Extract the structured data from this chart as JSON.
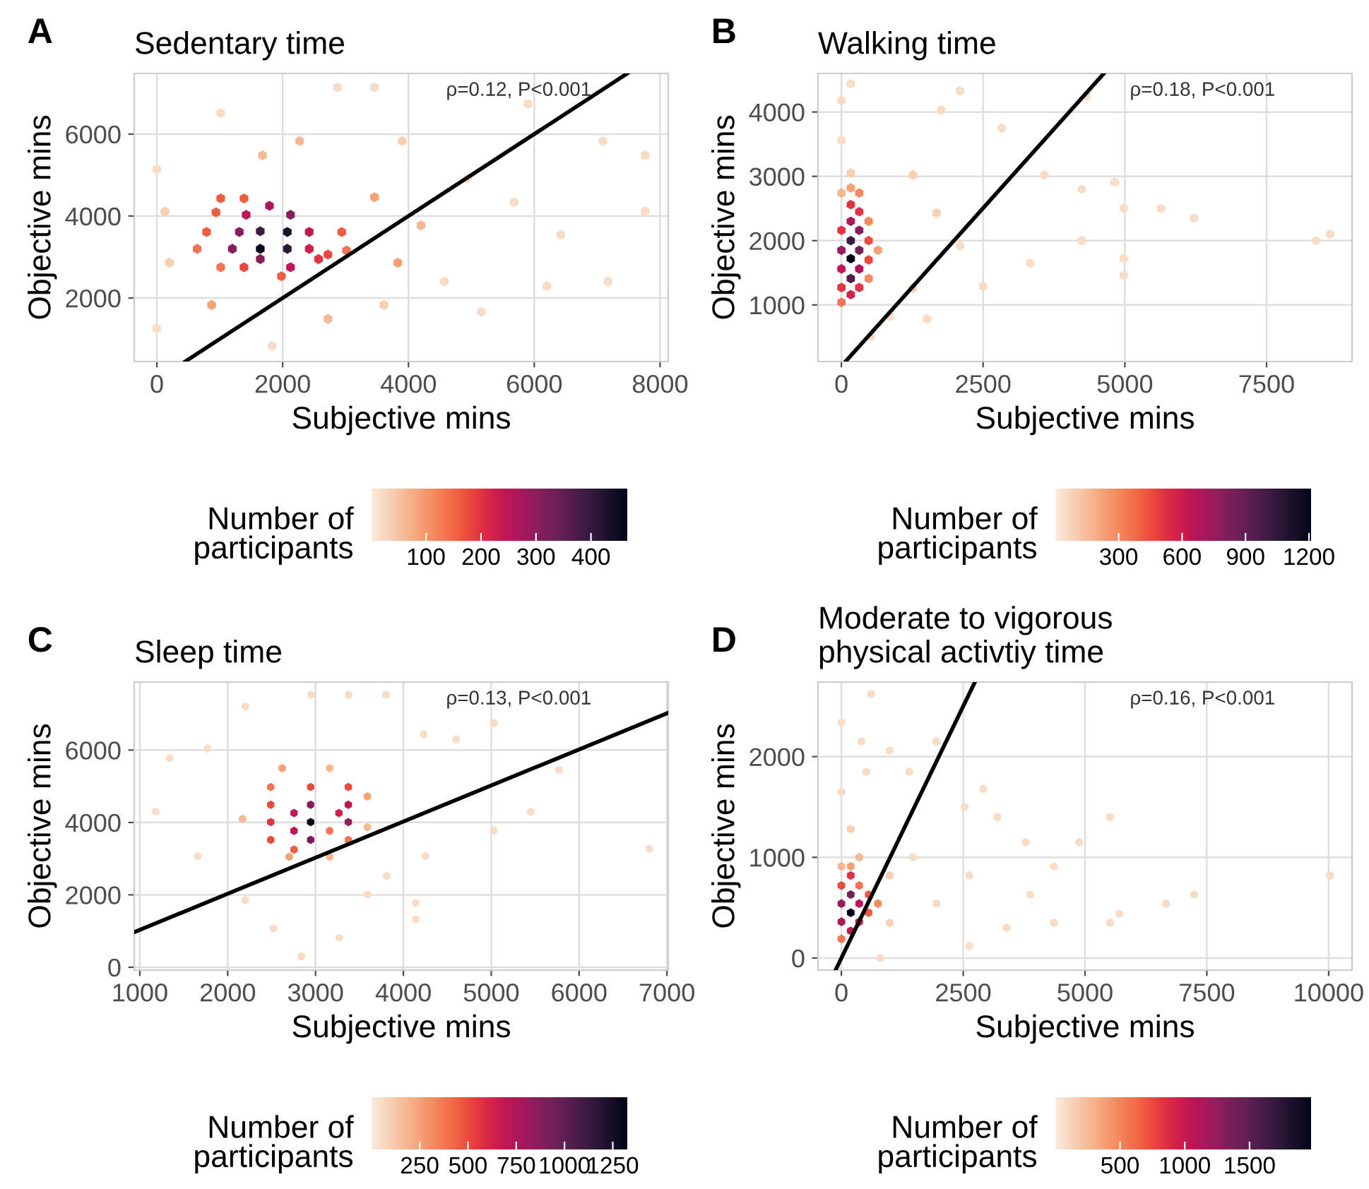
{
  "chart_data": [
    {
      "type": "scatter",
      "title": "Sedentary time",
      "xlabel": "Subjective mins",
      "ylabel": "Objective mins",
      "clabel": "Number of participants",
      "annotations": [
        "A",
        "ρ=0.12, P<0.001"
      ],
      "xlim": [
        -360,
        8130
      ],
      "ylim": [
        450,
        7480
      ],
      "xticks": [
        0,
        2000,
        4000,
        6000,
        8000
      ],
      "yticks": [
        2000,
        4000,
        6000
      ],
      "grid": true,
      "clim": [
        1,
        466
      ],
      "cticks": [
        100,
        200,
        300,
        400
      ],
      "series": [
        {
          "type": "scatter",
          "x": [
            1644,
            2074,
            2074,
            1644,
            1311,
            1200,
            1644,
            2125,
            1790,
            1420,
            2422,
            2422,
            2125,
            2570,
            790,
            940,
            1015,
            1385,
            2940,
            2720,
            1980,
            1385,
            1015,
            640,
            3015,
            0,
            0,
            1015,
            2870,
            3460,
            5900,
            7090,
            7760,
            7760,
            7170,
            6200,
            5160,
            1830,
            3900,
            4940,
            5680,
            4570,
            3610,
            200,
            130,
            4200,
            3460,
            3830,
            6420,
            2270,
            1680,
            2720,
            870
          ],
          "values": [
            3200,
            3610,
            3200,
            3630,
            3610,
            3200,
            2950,
            4030,
            4250,
            4030,
            3610,
            3200,
            2750,
            2950,
            3610,
            4090,
            4430,
            4430,
            3610,
            3060,
            2530,
            2750,
            2750,
            3200,
            3160,
            5140,
            1260,
            6510,
            7140,
            7140,
            6740,
            5830,
            5480,
            4110,
            2400,
            2290,
            1660,
            830,
            5830,
            4910,
            4340,
            2400,
            1830,
            2860,
            4110,
            3770,
            4460,
            2860,
            3540,
            5830,
            5480,
            1490,
            1830
          ],
          "colors": [
            "#03051a",
            "#1d112c",
            "#2d1738",
            "#3e1a43",
            "#861e5b",
            "#861e5b",
            "#861e5b",
            "#861e5b",
            "#ad1759",
            "#bf1756",
            "#bf1756",
            "#d1224d",
            "#bf1756",
            "#df3443",
            "#f05c40",
            "#f05c40",
            "#f05c40",
            "#f05c40",
            "#f05c40",
            "#ea4a3c",
            "#f05c40",
            "#ea4a3c",
            "#f47553",
            "#f47553",
            "#f47553",
            "#f9dcc6",
            "#f9dcc6",
            "#f9dcc6",
            "#f9dcc6",
            "#f9dcc6",
            "#f9dcc6",
            "#f9dcc6",
            "#f9dcc6",
            "#f9dcc6",
            "#f9dcc6",
            "#f9dcc6",
            "#f9dcc6",
            "#f9dcc6",
            "#f8cfb3",
            "#f9dcc6",
            "#f9dcc6",
            "#f9dcc6",
            "#f8cfb3",
            "#f8cfb3",
            "#f8cfb3",
            "#f6b892",
            "#f5a273",
            "#f5a273",
            "#f9dcc6",
            "#f6b892",
            "#f6b892",
            "#f6b892",
            "#f5a273"
          ]
        },
        {
          "type": "line",
          "x": [
            450,
            7480
          ],
          "values": [
            450,
            7480
          ],
          "color": "#000000"
        }
      ]
    },
    {
      "type": "scatter",
      "title": "Walking time",
      "xlabel": "Subjective mins",
      "ylabel": "Objective mins",
      "clabel": "Number of participants",
      "annotations": [
        "B",
        "ρ=0.18, P<0.001"
      ],
      "xlim": [
        -413,
        9008
      ],
      "ylim": [
        120,
        4600
      ],
      "xticks": [
        0,
        2500,
        5000,
        7500
      ],
      "yticks": [
        1000,
        2000,
        3000,
        4000
      ],
      "grid": true,
      "clim": [
        1,
        1210
      ],
      "cticks": [
        300,
        600,
        900,
        1200
      ],
      "series": [
        {
          "type": "scatter",
          "x": [
            165,
            165,
            165,
            314,
            0,
            314,
            165,
            0,
            314,
            0,
            165,
            0,
            314,
            480,
            480,
            314,
            165,
            0,
            480,
            645,
            480,
            165,
            314,
            0,
            165,
            0,
            165,
            0,
            2090,
            1760,
            2830,
            1260,
            1680,
            2090,
            1260,
            850,
            1510,
            520,
            3580,
            4240,
            4820,
            4980,
            5640,
            6220,
            4240,
            4980,
            4980,
            8370,
            8620,
            4320,
            3330,
            2500
          ],
          "values": [
            1720,
            2000,
            1410,
            1850,
            1850,
            2160,
            2300,
            1560,
            1560,
            2160,
            1160,
            1270,
            1270,
            1700,
            2000,
            2450,
            2560,
            1040,
            2300,
            1850,
            1410,
            2820,
            2740,
            2740,
            3050,
            3560,
            4440,
            4180,
            4330,
            4030,
            3750,
            3020,
            2430,
            1920,
            1260,
            820,
            780,
            510,
            3020,
            2800,
            2910,
            2500,
            2500,
            2350,
            2000,
            1720,
            1460,
            2000,
            2100,
            4250,
            1650,
            1290
          ],
          "colors": [
            "#03051a",
            "#3e1a43",
            "#4f1d4b",
            "#731f58",
            "#9b1a5b",
            "#861e5b",
            "#ad1759",
            "#bf1756",
            "#ad1759",
            "#df3443",
            "#d1224d",
            "#df3443",
            "#df3443",
            "#ea4a3c",
            "#ea4a3c",
            "#df3443",
            "#df3443",
            "#f47553",
            "#f48a5f",
            "#f5a273",
            "#f48a5f",
            "#f5a273",
            "#f48a5f",
            "#f6b892",
            "#f8cfb3",
            "#f9dcc6",
            "#f9dcc6",
            "#f9dcc6",
            "#f9dcc6",
            "#f9dcc6",
            "#f9dcc6",
            "#f8cfb3",
            "#f8cfb3",
            "#f9dcc6",
            "#f8cfb3",
            "#f9dcc6",
            "#f9dcc6",
            "#f9dcc6",
            "#f9dcc6",
            "#f9dcc6",
            "#f9dcc6",
            "#f9dcc6",
            "#f9dcc6",
            "#f9dcc6",
            "#f9dcc6",
            "#f9dcc6",
            "#f9dcc6",
            "#f9dcc6",
            "#f9dcc6",
            "#f9dcc6",
            "#f9dcc6",
            "#f9dcc6"
          ]
        },
        {
          "type": "line",
          "x": [
            83,
            4630
          ],
          "values": [
            130,
            4600
          ],
          "color": "#000000"
        }
      ]
    },
    {
      "type": "scatter",
      "title": "Sleep time",
      "xlabel": "Subjective mins",
      "ylabel": "Objective mins",
      "clabel": "Number of participants",
      "annotations": [
        "C",
        "ρ=0.13, P<0.001"
      ],
      "xlim": [
        936,
        7015
      ],
      "ylim": [
        -80,
        7880
      ],
      "xticks": [
        1000,
        2000,
        3000,
        4000,
        5000,
        6000,
        7000
      ],
      "yticks": [
        0,
        2000,
        4000,
        6000
      ],
      "grid": true,
      "clim": [
        1,
        1325
      ],
      "cticks": [
        250,
        500,
        750,
        1000,
        1250
      ],
      "series": [
        {
          "type": "scatter",
          "x": [
            2944,
            2944,
            2944,
            3373,
            3373,
            2755,
            2755,
            3266,
            2490,
            2490,
            2490,
            2944,
            3373,
            2490,
            2755,
            3373,
            3160,
            2620,
            3160,
            3590,
            2170,
            2700,
            3160,
            3590,
            1180,
            1340,
            1770,
            2200,
            2950,
            3380,
            3800,
            4230,
            4600,
            5030,
            5450,
            5770,
            6800,
            5030,
            4140,
            4140,
            3270,
            2840,
            2520,
            2200,
            1660,
            4250,
            3810,
            3590
          ],
          "values": [
            4010,
            3520,
            4490,
            4010,
            4490,
            4260,
            3770,
            4260,
            4010,
            4490,
            3520,
            4980,
            4980,
            4980,
            3250,
            3520,
            3770,
            5500,
            5500,
            4720,
            4100,
            3050,
            3050,
            3870,
            4300,
            5780,
            6040,
            7200,
            7530,
            7530,
            7530,
            6430,
            6300,
            6750,
            4300,
            5450,
            3270,
            3780,
            1780,
            1330,
            810,
            300,
            1070,
            1850,
            3070,
            3070,
            2520,
            2010
          ],
          "colors": [
            "#03051a",
            "#731f58",
            "#861e5b",
            "#9b1a5b",
            "#bf1756",
            "#bf1756",
            "#bf1756",
            "#d1224d",
            "#df3443",
            "#ea4a3c",
            "#ea4a3c",
            "#ea4a3c",
            "#ea4a3c",
            "#f47553",
            "#f05c40",
            "#f47553",
            "#f47553",
            "#f5a273",
            "#f6b892",
            "#f5a273",
            "#f6b892",
            "#f5a273",
            "#f6b892",
            "#f6b892",
            "#f9dcc6",
            "#f9dcc6",
            "#f9dcc6",
            "#f9dcc6",
            "#f9dcc6",
            "#f9dcc6",
            "#f9dcc6",
            "#f9dcc6",
            "#f9dcc6",
            "#f9dcc6",
            "#f9dcc6",
            "#f9dcc6",
            "#f9dcc6",
            "#f9dcc6",
            "#f9dcc6",
            "#f9dcc6",
            "#f9dcc6",
            "#f9dcc6",
            "#f9dcc6",
            "#f9dcc6",
            "#f9dcc6",
            "#f9dcc6",
            "#f9dcc6",
            "#f9dcc6"
          ]
        },
        {
          "type": "line",
          "x": [
            936,
            7015
          ],
          "values": [
            970,
            7030
          ],
          "color": "#000000"
        }
      ]
    },
    {
      "type": "scatter",
      "title": "Moderate to vigorous\nphysical activtiy time",
      "xlabel": "Subjective mins",
      "ylabel": "Objective mins",
      "clabel": "Number of participants",
      "annotations": [
        "D",
        "ρ=0.16, P<0.001"
      ],
      "xlim": [
        -480,
        10480
      ],
      "ylim": [
        -120,
        2740
      ],
      "xticks": [
        0,
        2500,
        5000,
        7500,
        10000
      ],
      "yticks": [
        0,
        1000,
        2000
      ],
      "grid": true,
      "clim": [
        1,
        1975
      ],
      "cticks": [
        500,
        1000,
        1500
      ],
      "series": [
        {
          "type": "scatter",
          "x": [
            192,
            192,
            0,
            0,
            192,
            365,
            365,
            192,
            0,
            558,
            558,
            0,
            365,
            750,
            192,
            365,
            0,
            990,
            1470,
            990,
            192,
            0,
            510,
            0,
            610,
            410,
            990,
            1950,
            1390,
            2910,
            2530,
            3200,
            5510,
            4880,
            3780,
            4360,
            3875,
            2625,
            1950,
            3390,
            2625,
            800,
            10030,
            7240,
            6660,
            5510,
            4360,
            5700
          ],
          "values": [
            450,
            630,
            540,
            360,
            270,
            540,
            360,
            820,
            720,
            630,
            450,
            190,
            720,
            540,
            910,
            1000,
            910,
            820,
            1000,
            350,
            1280,
            1650,
            1850,
            2340,
            2620,
            2150,
            2060,
            2150,
            1850,
            1680,
            1500,
            1400,
            1400,
            1150,
            1150,
            910,
            630,
            820,
            540,
            300,
            120,
            0,
            820,
            630,
            540,
            350,
            350,
            440
          ],
          "colors": [
            "#03051a",
            "#731f58",
            "#9b1a5b",
            "#ad1759",
            "#bf1756",
            "#bf1756",
            "#d1224d",
            "#df3443",
            "#ea4a3c",
            "#f05c40",
            "#f05c40",
            "#f47553",
            "#f47553",
            "#f48a5f",
            "#f5a273",
            "#f6b892",
            "#f6b892",
            "#f8cfb3",
            "#f9dcc6",
            "#f8cfb3",
            "#f8cfb3",
            "#f9dcc6",
            "#f9dcc6",
            "#f9dcc6",
            "#f9dcc6",
            "#f9dcc6",
            "#f9dcc6",
            "#f9dcc6",
            "#f9dcc6",
            "#f9dcc6",
            "#f9dcc6",
            "#f9dcc6",
            "#f9dcc6",
            "#f9dcc6",
            "#f9dcc6",
            "#f9dcc6",
            "#f9dcc6",
            "#f9dcc6",
            "#f9dcc6",
            "#f9dcc6",
            "#f9dcc6",
            "#f9dcc6",
            "#f9dcc6",
            "#f9dcc6",
            "#f9dcc6",
            "#f9dcc6",
            "#f9dcc6",
            "#f9dcc6"
          ]
        },
        {
          "type": "line",
          "x": [
            -120,
            2740
          ],
          "values": [
            -120,
            2740
          ],
          "color": "#000000"
        }
      ]
    }
  ]
}
